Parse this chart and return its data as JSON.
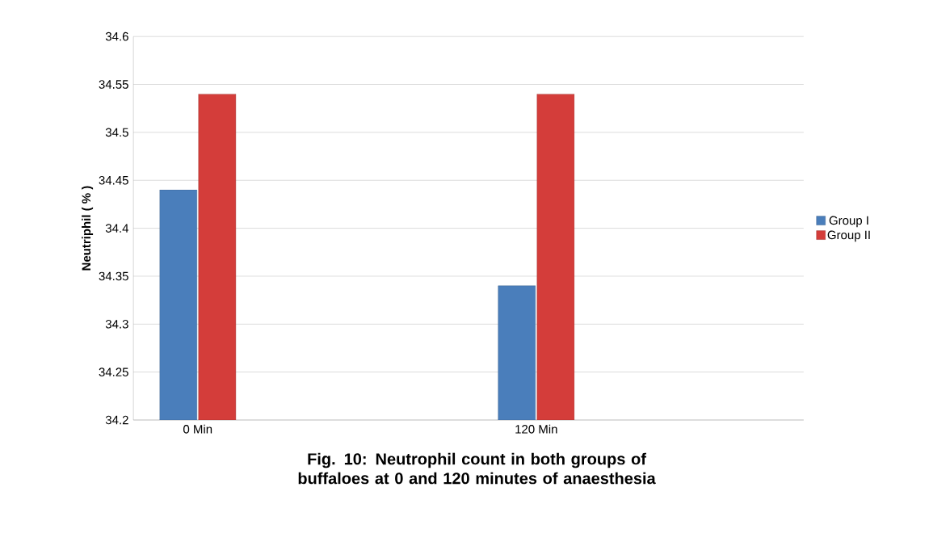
{
  "chart_data": {
    "type": "bar",
    "title": "Fig. 10: Neutrophil count in both groups of buffaloes at 0 and 120 minutes of anaesthesia",
    "ylabel": "Neutriphil ( % )",
    "categories": [
      "0 Min",
      "120 Min"
    ],
    "series": [
      {
        "name": "Group I",
        "color": "#4a7ebb",
        "values": [
          34.44,
          34.34
        ]
      },
      {
        "name": "Group II",
        "color": "#d43d3a",
        "values": [
          34.54,
          34.54
        ]
      }
    ],
    "ylim": [
      34.2,
      34.6
    ],
    "yticks": [
      34.2,
      34.25,
      34.3,
      34.35,
      34.4,
      34.45,
      34.5,
      34.55,
      34.6
    ],
    "grid": "y",
    "legend": "right"
  }
}
